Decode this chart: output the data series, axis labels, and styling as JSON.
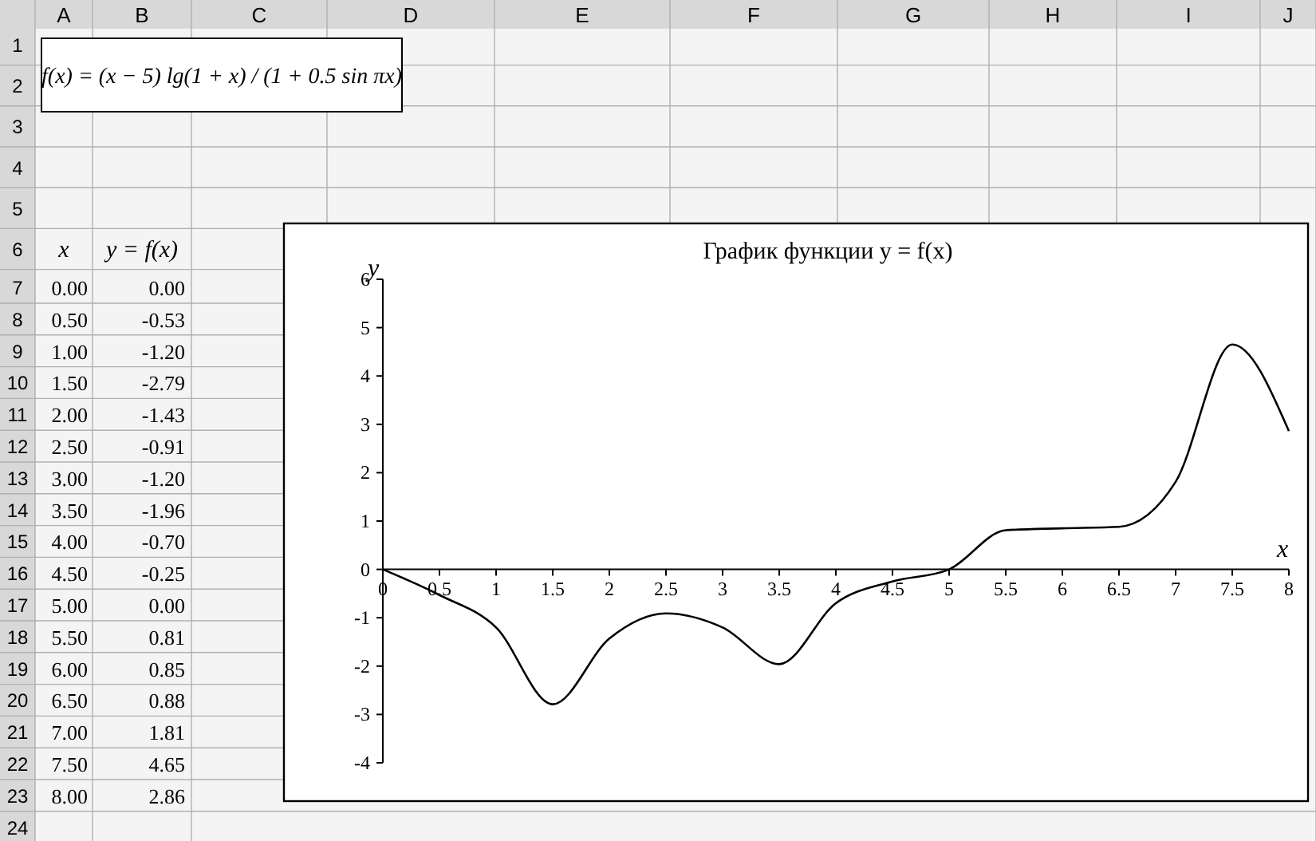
{
  "chart_data": {
    "type": "line",
    "title": "График функции y = f(x)",
    "xlabel": "x",
    "ylabel": "y",
    "x": [
      0,
      0.5,
      1,
      1.5,
      2,
      2.5,
      3,
      3.5,
      4,
      4.5,
      5,
      5.5,
      6,
      6.5,
      7,
      7.5,
      8
    ],
    "series": [
      {
        "color": "#000000",
        "values": [
          0.0,
          -0.53,
          -1.2,
          -2.79,
          -1.43,
          -0.91,
          -1.2,
          -1.96,
          -0.7,
          -0.25,
          0.0,
          0.81,
          0.85,
          0.88,
          1.81,
          4.65,
          2.86
        ]
      }
    ],
    "xlim": [
      0,
      8
    ],
    "xticks": [
      0,
      0.5,
      1,
      1.5,
      2,
      2.5,
      3,
      3.5,
      4,
      4.5,
      5,
      5.5,
      6,
      6.5,
      7,
      7.5,
      8
    ],
    "ylim": [
      -4,
      6
    ],
    "yticks": [
      -4,
      -3,
      -2,
      -1,
      0,
      1,
      2,
      3,
      4,
      5,
      6
    ],
    "marker": "none",
    "line_style": "solid",
    "annotations": [
      "f(x) = (x − 5) lg(1 + x) / (1 + 0.5 sin πx)",
      "x",
      "y = f(x)",
      "A",
      "B",
      "C",
      "D",
      "E",
      "F",
      "G",
      "H",
      "I",
      "J",
      "1",
      "2",
      "3",
      "4",
      "5",
      "6",
      "7",
      "8",
      "9",
      "10",
      "11",
      "12",
      "13",
      "14",
      "15",
      "16",
      "17",
      "18",
      "19",
      "20",
      "21",
      "22",
      "23",
      "24",
      "0.00",
      "0.50",
      "1.00",
      "1.50",
      "2.00",
      "2.50",
      "3.00",
      "3.50",
      "4.00",
      "4.50",
      "5.00",
      "5.50",
      "6.00",
      "6.50",
      "7.00",
      "7.50",
      "8.00",
      "0.00",
      "-0.53",
      "-1.20",
      "-2.79",
      "-1.43",
      "-0.91",
      "-1.20",
      "-1.96",
      "-0.70",
      "-0.25",
      "0.00",
      "0.81",
      "0.85",
      "0.88",
      "1.81",
      "4.65",
      "2.86"
    ]
  }
}
